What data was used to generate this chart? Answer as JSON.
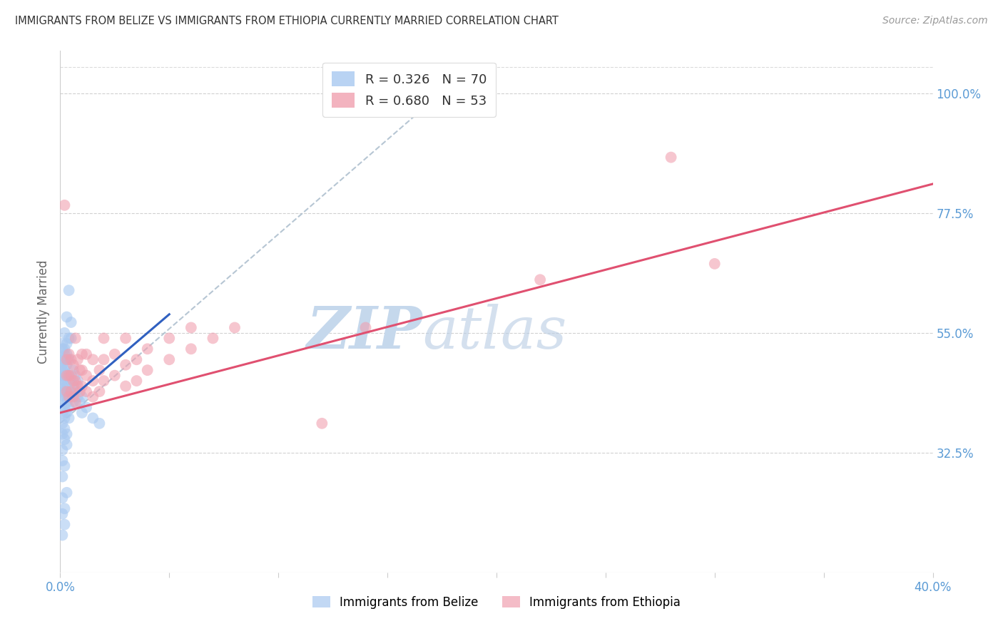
{
  "title": "IMMIGRANTS FROM BELIZE VS IMMIGRANTS FROM ETHIOPIA CURRENTLY MARRIED CORRELATION CHART",
  "source": "Source: ZipAtlas.com",
  "ylabel": "Currently Married",
  "right_yticks": [
    0.325,
    0.55,
    0.775,
    1.0
  ],
  "right_yticklabels": [
    "32.5%",
    "55.0%",
    "77.5%",
    "100.0%"
  ],
  "xmin": 0.0,
  "xmax": 0.4,
  "ymin": 0.1,
  "ymax": 1.08,
  "belize_color": "#a8c8f0",
  "ethiopia_color": "#f0a0b0",
  "belize_line_color": "#3060c0",
  "ethiopia_line_color": "#e05070",
  "diagonal_color": "#aabccc",
  "background_color": "#ffffff",
  "grid_color": "#cccccc",
  "title_color": "#333333",
  "source_color": "#999999",
  "tick_color": "#5b9bd5",
  "ylabel_color": "#666666",
  "belize_points": [
    [
      0.001,
      0.44
    ],
    [
      0.001,
      0.47
    ],
    [
      0.001,
      0.5
    ],
    [
      0.001,
      0.52
    ],
    [
      0.001,
      0.53
    ],
    [
      0.001,
      0.48
    ],
    [
      0.001,
      0.45
    ],
    [
      0.001,
      0.42
    ],
    [
      0.001,
      0.46
    ],
    [
      0.001,
      0.49
    ],
    [
      0.002,
      0.43
    ],
    [
      0.002,
      0.46
    ],
    [
      0.002,
      0.48
    ],
    [
      0.002,
      0.51
    ],
    [
      0.002,
      0.44
    ],
    [
      0.002,
      0.47
    ],
    [
      0.002,
      0.5
    ],
    [
      0.002,
      0.52
    ],
    [
      0.002,
      0.41
    ],
    [
      0.002,
      0.55
    ],
    [
      0.003,
      0.42
    ],
    [
      0.003,
      0.45
    ],
    [
      0.003,
      0.49
    ],
    [
      0.003,
      0.53
    ],
    [
      0.003,
      0.4
    ],
    [
      0.003,
      0.43
    ],
    [
      0.003,
      0.47
    ],
    [
      0.003,
      0.51
    ],
    [
      0.003,
      0.58
    ],
    [
      0.004,
      0.41
    ],
    [
      0.004,
      0.44
    ],
    [
      0.004,
      0.47
    ],
    [
      0.004,
      0.5
    ],
    [
      0.004,
      0.54
    ],
    [
      0.004,
      0.39
    ],
    [
      0.004,
      0.63
    ],
    [
      0.005,
      0.43
    ],
    [
      0.005,
      0.46
    ],
    [
      0.005,
      0.54
    ],
    [
      0.005,
      0.57
    ],
    [
      0.006,
      0.42
    ],
    [
      0.006,
      0.45
    ],
    [
      0.006,
      0.48
    ],
    [
      0.007,
      0.44
    ],
    [
      0.007,
      0.47
    ],
    [
      0.008,
      0.43
    ],
    [
      0.008,
      0.46
    ],
    [
      0.009,
      0.42
    ],
    [
      0.01,
      0.4
    ],
    [
      0.01,
      0.43
    ],
    [
      0.012,
      0.41
    ],
    [
      0.015,
      0.39
    ],
    [
      0.018,
      0.38
    ],
    [
      0.001,
      0.36
    ],
    [
      0.001,
      0.38
    ],
    [
      0.001,
      0.4
    ],
    [
      0.002,
      0.35
    ],
    [
      0.002,
      0.37
    ],
    [
      0.002,
      0.39
    ],
    [
      0.003,
      0.34
    ],
    [
      0.003,
      0.36
    ],
    [
      0.001,
      0.33
    ],
    [
      0.001,
      0.31
    ],
    [
      0.002,
      0.3
    ],
    [
      0.001,
      0.28
    ],
    [
      0.001,
      0.24
    ],
    [
      0.001,
      0.21
    ],
    [
      0.002,
      0.22
    ],
    [
      0.003,
      0.25
    ],
    [
      0.001,
      0.17
    ],
    [
      0.002,
      0.19
    ]
  ],
  "ethiopia_points": [
    [
      0.002,
      0.79
    ],
    [
      0.003,
      0.44
    ],
    [
      0.003,
      0.47
    ],
    [
      0.003,
      0.5
    ],
    [
      0.004,
      0.43
    ],
    [
      0.004,
      0.47
    ],
    [
      0.004,
      0.51
    ],
    [
      0.005,
      0.44
    ],
    [
      0.005,
      0.47
    ],
    [
      0.005,
      0.5
    ],
    [
      0.006,
      0.43
    ],
    [
      0.006,
      0.46
    ],
    [
      0.006,
      0.49
    ],
    [
      0.007,
      0.42
    ],
    [
      0.007,
      0.46
    ],
    [
      0.007,
      0.54
    ],
    [
      0.008,
      0.45
    ],
    [
      0.008,
      0.5
    ],
    [
      0.009,
      0.44
    ],
    [
      0.009,
      0.48
    ],
    [
      0.01,
      0.45
    ],
    [
      0.01,
      0.48
    ],
    [
      0.01,
      0.51
    ],
    [
      0.012,
      0.44
    ],
    [
      0.012,
      0.47
    ],
    [
      0.012,
      0.51
    ],
    [
      0.015,
      0.43
    ],
    [
      0.015,
      0.46
    ],
    [
      0.015,
      0.5
    ],
    [
      0.018,
      0.44
    ],
    [
      0.018,
      0.48
    ],
    [
      0.02,
      0.46
    ],
    [
      0.02,
      0.5
    ],
    [
      0.02,
      0.54
    ],
    [
      0.025,
      0.47
    ],
    [
      0.025,
      0.51
    ],
    [
      0.03,
      0.45
    ],
    [
      0.03,
      0.49
    ],
    [
      0.03,
      0.54
    ],
    [
      0.035,
      0.46
    ],
    [
      0.035,
      0.5
    ],
    [
      0.04,
      0.48
    ],
    [
      0.04,
      0.52
    ],
    [
      0.05,
      0.5
    ],
    [
      0.05,
      0.54
    ],
    [
      0.06,
      0.52
    ],
    [
      0.06,
      0.56
    ],
    [
      0.07,
      0.54
    ],
    [
      0.08,
      0.56
    ],
    [
      0.12,
      0.38
    ],
    [
      0.14,
      0.56
    ],
    [
      0.22,
      0.65
    ],
    [
      0.28,
      0.88
    ],
    [
      0.3,
      0.68
    ]
  ],
  "belize_line": [
    [
      0.0,
      0.41
    ],
    [
      0.05,
      0.585
    ]
  ],
  "ethiopia_line": [
    [
      0.0,
      0.4
    ],
    [
      0.4,
      0.83
    ]
  ]
}
